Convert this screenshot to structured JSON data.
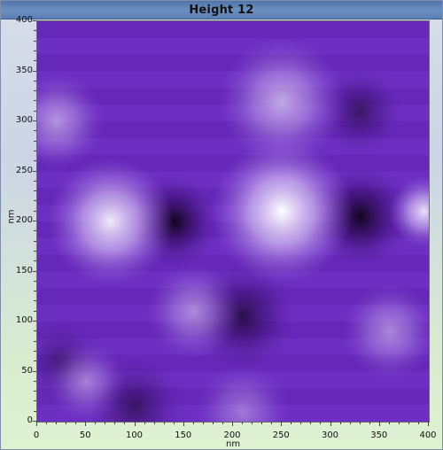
{
  "window": {
    "title": "Height 12"
  },
  "chart_data": {
    "type": "heatmap",
    "title": "Height 12",
    "xlabel": "nm",
    "ylabel": "nm",
    "xlim": [
      0,
      400
    ],
    "ylim": [
      0,
      400
    ],
    "x_ticks": [
      "0",
      "50",
      "100",
      "150",
      "200",
      "250",
      "300",
      "350",
      "400"
    ],
    "y_ticks": [
      "0",
      "50",
      "100",
      "150",
      "200",
      "250",
      "300",
      "350",
      "400"
    ],
    "colormap": [
      "#0d0315",
      "#3a0f6e",
      "#6a2bbf",
      "#9d6ce0",
      "#d7c4f5",
      "#ffffff"
    ],
    "features": [
      {
        "kind": "dark",
        "x": 140,
        "y": 200,
        "r": 32,
        "strength": 0.95
      },
      {
        "kind": "dark",
        "x": 330,
        "y": 205,
        "r": 35,
        "strength": 0.95
      },
      {
        "kind": "dark",
        "x": 210,
        "y": 105,
        "r": 38,
        "strength": 0.7
      },
      {
        "kind": "dark",
        "x": 330,
        "y": 310,
        "r": 30,
        "strength": 0.55
      },
      {
        "kind": "dark",
        "x": 100,
        "y": 15,
        "r": 35,
        "strength": 0.55
      },
      {
        "kind": "dark",
        "x": 25,
        "y": 60,
        "r": 30,
        "strength": 0.4
      },
      {
        "kind": "bright",
        "x": 75,
        "y": 200,
        "r": 40,
        "strength": 0.9
      },
      {
        "kind": "bright",
        "x": 250,
        "y": 210,
        "r": 45,
        "strength": 1.0
      },
      {
        "kind": "bright",
        "x": 395,
        "y": 210,
        "r": 22,
        "strength": 0.85
      },
      {
        "kind": "bright",
        "x": 250,
        "y": 320,
        "r": 40,
        "strength": 0.6
      },
      {
        "kind": "bright",
        "x": 20,
        "y": 300,
        "r": 30,
        "strength": 0.5
      },
      {
        "kind": "bright",
        "x": 360,
        "y": 90,
        "r": 30,
        "strength": 0.45
      },
      {
        "kind": "bright",
        "x": 160,
        "y": 110,
        "r": 30,
        "strength": 0.45
      },
      {
        "kind": "bright",
        "x": 50,
        "y": 40,
        "r": 25,
        "strength": 0.4
      },
      {
        "kind": "bright",
        "x": 210,
        "y": 10,
        "r": 30,
        "strength": 0.35
      }
    ]
  }
}
